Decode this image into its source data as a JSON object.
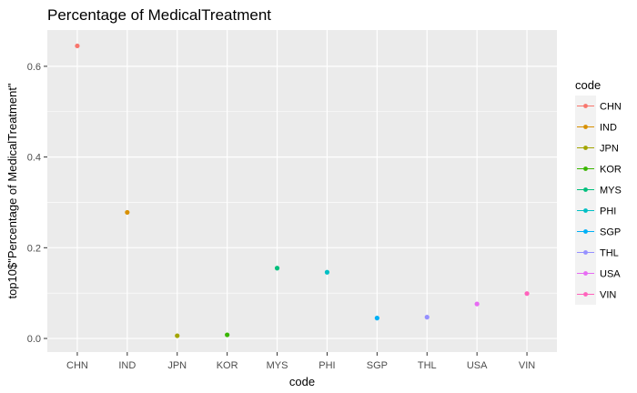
{
  "chart_data": {
    "type": "scatter",
    "title": "Percentage of MedicalTreatment",
    "xlabel": "code",
    "ylabel": "top10$\"Percentage of MedicalTreatment\"",
    "categories": [
      "CHN",
      "IND",
      "JPN",
      "KOR",
      "MYS",
      "PHI",
      "SGP",
      "THL",
      "USA",
      "VIN"
    ],
    "values": [
      0.645,
      0.278,
      0.006,
      0.008,
      0.155,
      0.146,
      0.045,
      0.047,
      0.076,
      0.099
    ],
    "ylim": [
      -0.03,
      0.68
    ],
    "yticks": [
      0.0,
      0.2,
      0.4,
      0.6
    ],
    "ytick_labels": [
      "0.0",
      "0.2",
      "0.4",
      "0.6"
    ],
    "grid": true,
    "legend": {
      "title": "code",
      "position": "right",
      "entries": [
        "CHN",
        "IND",
        "JPN",
        "KOR",
        "MYS",
        "PHI",
        "SGP",
        "THL",
        "USA",
        "VIN"
      ]
    },
    "colors": [
      "#F8766D",
      "#D89000",
      "#A3A500",
      "#39B600",
      "#00BF7D",
      "#00BFC4",
      "#00B0F6",
      "#9590FF",
      "#E76BF3",
      "#FF62BC"
    ],
    "panel_background": "#EBEBEB",
    "grid_color": "#FFFFFF"
  }
}
